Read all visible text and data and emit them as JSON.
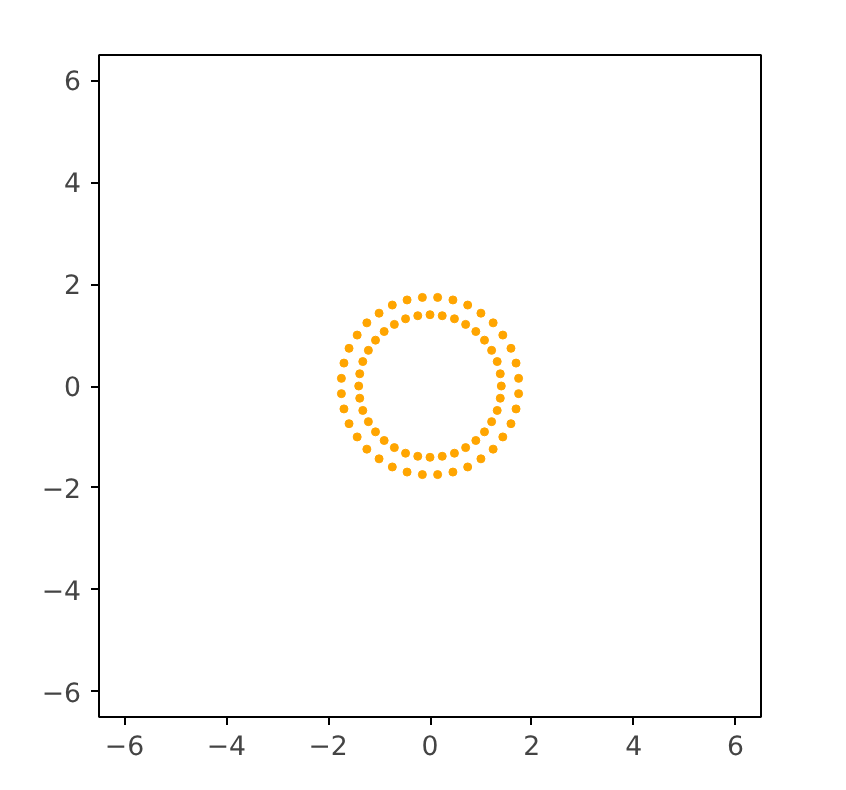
{
  "chart_data": {
    "type": "scatter",
    "marker": "circle",
    "grid": false,
    "xlim": [
      -6.5,
      6.5
    ],
    "ylim": [
      -6.5,
      6.5
    ],
    "xticks": [
      -6,
      -4,
      -2,
      0,
      2,
      4,
      6
    ],
    "yticks": [
      -6,
      -4,
      -2,
      0,
      2,
      4,
      6
    ],
    "series": [
      {
        "color": "#ffa500",
        "x": [
          1.4,
          1.38,
          1.32,
          1.21,
          1.07,
          0.9,
          0.7,
          0.48,
          0.24,
          1.74,
          1.69,
          1.59,
          1.43,
          1.24,
          1.0,
          0.74,
          0.45,
          0.15,
          0,
          -0.24,
          -0.48,
          -0.7,
          -0.9,
          -1.07,
          -1.21,
          -1.32,
          -1.38,
          -0.15,
          -0.45,
          -0.74,
          -1.0,
          -1.24,
          -1.43,
          -1.59,
          -1.69,
          -1.74,
          -1.4,
          -1.38,
          -1.32,
          -1.21,
          -1.07,
          -0.9,
          -0.7,
          -0.48,
          -0.24,
          -1.74,
          -1.69,
          -1.59,
          -1.43,
          -1.24,
          -1.0,
          -0.74,
          -0.45,
          -0.15,
          0,
          0.24,
          0.48,
          0.7,
          0.9,
          1.07,
          1.21,
          1.32,
          1.38,
          0.15,
          0.45,
          0.74,
          1.0,
          1.24,
          1.43,
          1.59,
          1.69,
          1.74
        ],
        "values": [
          0,
          0.24,
          0.48,
          0.7,
          0.9,
          1.07,
          1.21,
          1.32,
          1.38,
          0.15,
          0.45,
          0.74,
          1.0,
          1.24,
          1.43,
          1.59,
          1.69,
          1.74,
          1.4,
          1.38,
          1.32,
          1.21,
          1.07,
          0.9,
          0.7,
          0.48,
          0.24,
          1.74,
          1.69,
          1.59,
          1.43,
          1.24,
          1.0,
          0.74,
          0.45,
          0.15,
          0,
          -0.24,
          -0.48,
          -0.7,
          -0.9,
          -1.07,
          -1.21,
          -1.32,
          -1.38,
          -0.15,
          -0.45,
          -0.74,
          -1.0,
          -1.24,
          -1.43,
          -1.59,
          -1.69,
          -1.74,
          -1.4,
          -1.38,
          -1.32,
          -1.21,
          -1.07,
          -0.9,
          -0.7,
          -0.48,
          -0.24,
          -1.74,
          -1.69,
          -1.59,
          -1.43,
          -1.24,
          -1.0,
          -0.74,
          -0.45,
          -0.15
        ]
      }
    ]
  }
}
